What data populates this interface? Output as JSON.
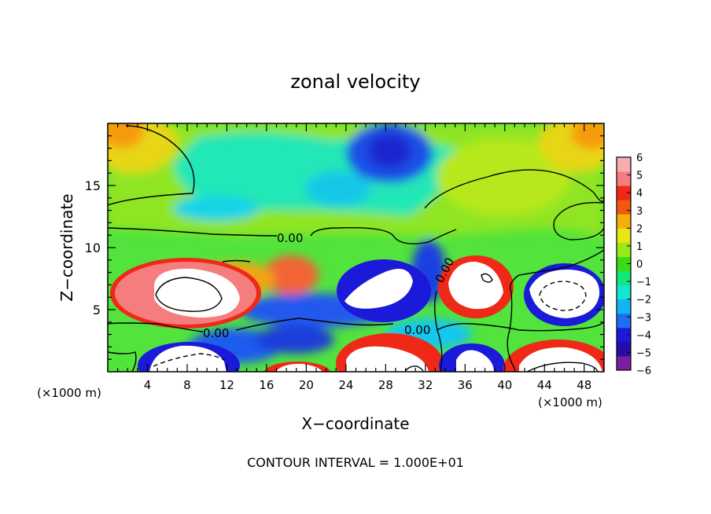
{
  "chart_data": {
    "type": "heatmap",
    "title": "zonal velocity",
    "xlabel": "X−coordinate",
    "ylabel": "Z−coordinate",
    "x_unit_left": "(×1000 m)",
    "x_unit_right": "(×1000 m)",
    "footer": "CONTOUR INTERVAL = 1.000E+01",
    "xlim": [
      0,
      50
    ],
    "ylim": [
      0,
      20
    ],
    "x_ticks": [
      4,
      8,
      12,
      16,
      20,
      24,
      28,
      32,
      36,
      40,
      44,
      48
    ],
    "y_ticks": [
      5,
      10,
      15
    ],
    "zero_contour_labels": [
      "0.00",
      "0.00",
      "0.00",
      "0.00"
    ],
    "colorbar": {
      "ticks": [
        6,
        5,
        4,
        3,
        2,
        1,
        0,
        -1,
        -2,
        -3,
        -4,
        -5,
        -6
      ],
      "tick_labels": [
        "6",
        "5",
        "4",
        "3",
        "2",
        "1",
        "0",
        "−1",
        "−2",
        "−3",
        "−4",
        "−5",
        "−6"
      ],
      "colors": [
        "#7a1fa2",
        "#2b0ba8",
        "#1a1ad8",
        "#1f6ef0",
        "#14b4f0",
        "#10e6d2",
        "#12e87a",
        "#3cdc14",
        "#9be81a",
        "#e8e614",
        "#f3b00c",
        "#f05a10",
        "#f02818",
        "#f57d7d",
        "#f6aeb0"
      ]
    },
    "anomalies": [
      {
        "x": 7.8,
        "z": 6.3,
        "sign": "positive",
        "peak": 10
      },
      {
        "x": 29,
        "z": 6.3,
        "sign": "negative",
        "peak": -10
      },
      {
        "x": 37.5,
        "z": 6.8,
        "sign": "positive",
        "peak": 10
      },
      {
        "x": 45.8,
        "z": 6.3,
        "sign": "negative",
        "peak": -10
      },
      {
        "x": 8.5,
        "z": 0.8,
        "sign": "negative",
        "peak": -10
      },
      {
        "x": 30,
        "z": 1.2,
        "sign": "positive",
        "peak": 10
      },
      {
        "x": 37.5,
        "z": 1.0,
        "sign": "negative",
        "peak": -10
      },
      {
        "x": 46.5,
        "z": 0.8,
        "sign": "positive",
        "peak": 10
      },
      {
        "x": 19,
        "z": 0.5,
        "sign": "positive",
        "peak": 8
      },
      {
        "x": 29,
        "z": 17.5,
        "sign": "negative",
        "peak": -4
      },
      {
        "x": 1.5,
        "z": 19,
        "sign": "positive",
        "peak": 3
      },
      {
        "x": 48.5,
        "z": 19,
        "sign": "positive",
        "peak": 3
      }
    ]
  }
}
